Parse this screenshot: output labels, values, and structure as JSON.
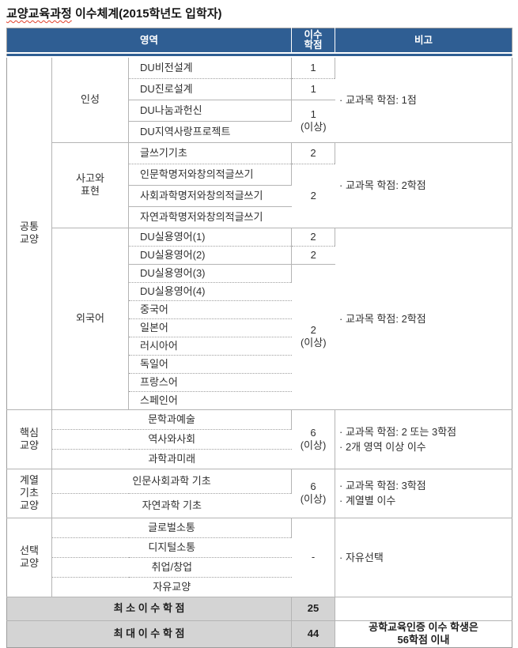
{
  "title": {
    "part1": "교양교육과정",
    "part2": " 이수체계(2015학년도 입학자)"
  },
  "colors": {
    "header_bg": "#2f5e93",
    "header_text": "#ffffff",
    "summary_bg": "#d4d4d4",
    "grid_border": "#b4b4b4",
    "spellcheck_underline": "#e2402a"
  },
  "header": {
    "area": "영역",
    "credits": "이수\n학점",
    "note": "비고"
  },
  "sections": [
    {
      "group": "공통\n교양",
      "subsections": [
        {
          "name": "인성",
          "remark": "· 교과목 학점: 1점",
          "rows": [
            {
              "course": "DU비전설계",
              "credit": "1",
              "creditSpan": 1,
              "sep": "solid"
            },
            {
              "course": "DU진로설계",
              "credit": "1",
              "creditSpan": 1,
              "sep": "dot"
            },
            {
              "course": "DU나눔과헌신",
              "credit": "1\n(이상)",
              "creditSpan": 2,
              "sep": "solid"
            },
            {
              "course": "DU지역사랑프로젝트",
              "sep": "solid"
            }
          ]
        },
        {
          "name": "사고와\n표현",
          "remark": "· 교과목 학점: 2학점",
          "rows": [
            {
              "course": "글쓰기기초",
              "credit": "2",
              "creditSpan": 1,
              "sep": "solid"
            },
            {
              "course": "인문학명저와창의적글쓰기",
              "credit": "2",
              "creditSpan": 3,
              "sep": "dot"
            },
            {
              "course": "사회과학명저와창의적글쓰기",
              "sep": "solid"
            },
            {
              "course": "자연과학명저와창의적글쓰기",
              "sep": "solid"
            }
          ]
        },
        {
          "name": "외국어",
          "remark": "· 교과목 학점: 2학점",
          "rows": [
            {
              "course": "DU실용영어(1)",
              "credit": "2",
              "creditSpan": 1,
              "sep": "solid"
            },
            {
              "course": "DU실용영어(2)",
              "credit": "2",
              "creditSpan": 1,
              "sep": "dot"
            },
            {
              "course": "DU실용영어(3)",
              "credit": "2\n(이상)",
              "creditSpan": 8,
              "sep": "solid"
            },
            {
              "course": "DU실용영어(4)",
              "sep": "dot"
            },
            {
              "course": "중국어",
              "sep": "dot"
            },
            {
              "course": "일본어",
              "sep": "dot"
            },
            {
              "course": "러시아어",
              "sep": "dot"
            },
            {
              "course": "독일어",
              "sep": "dot"
            },
            {
              "course": "프랑스어",
              "sep": "dot"
            },
            {
              "course": "스페인어",
              "sep": "dot"
            }
          ]
        }
      ]
    },
    {
      "group": "핵심\n교양",
      "subsections": [
        {
          "name": null,
          "remark": "· 교과목 학점: 2 또는 3학점\n· 2개 영역 이상 이수",
          "rows": [
            {
              "course": "문학과예술",
              "credit": "6\n(이상)",
              "creditSpan": 3,
              "sep": "solid"
            },
            {
              "course": "역사와사회",
              "sep": "dot"
            },
            {
              "course": "과학과미래",
              "sep": "dot"
            }
          ]
        }
      ]
    },
    {
      "group": "계열\n기초\n교양",
      "subsections": [
        {
          "name": null,
          "remark": "· 교과목 학점: 3학점\n· 계열별 이수",
          "rows": [
            {
              "course": "인문사회과학 기초",
              "credit": "6\n(이상)",
              "creditSpan": 2,
              "sep": "solid"
            },
            {
              "course": "자연과학 기초",
              "sep": "dot"
            }
          ]
        }
      ]
    },
    {
      "group": "선택\n교양",
      "subsections": [
        {
          "name": null,
          "remark": "· 자유선택",
          "rows": [
            {
              "course": "글로벌소통",
              "credit": "-",
              "creditSpan": 4,
              "sep": "solid"
            },
            {
              "course": "디지털소통",
              "sep": "dot"
            },
            {
              "course": "취업/창업",
              "sep": "dot"
            },
            {
              "course": "자유교양",
              "sep": "dot"
            }
          ]
        }
      ]
    }
  ],
  "summary": [
    {
      "label": "최 소 이 수 학 점",
      "value": "25",
      "note": ""
    },
    {
      "label": "최 대 이 수 학 점",
      "value": "44",
      "note": "공학교육인증 이수 학생은\n56학점 이내"
    }
  ]
}
